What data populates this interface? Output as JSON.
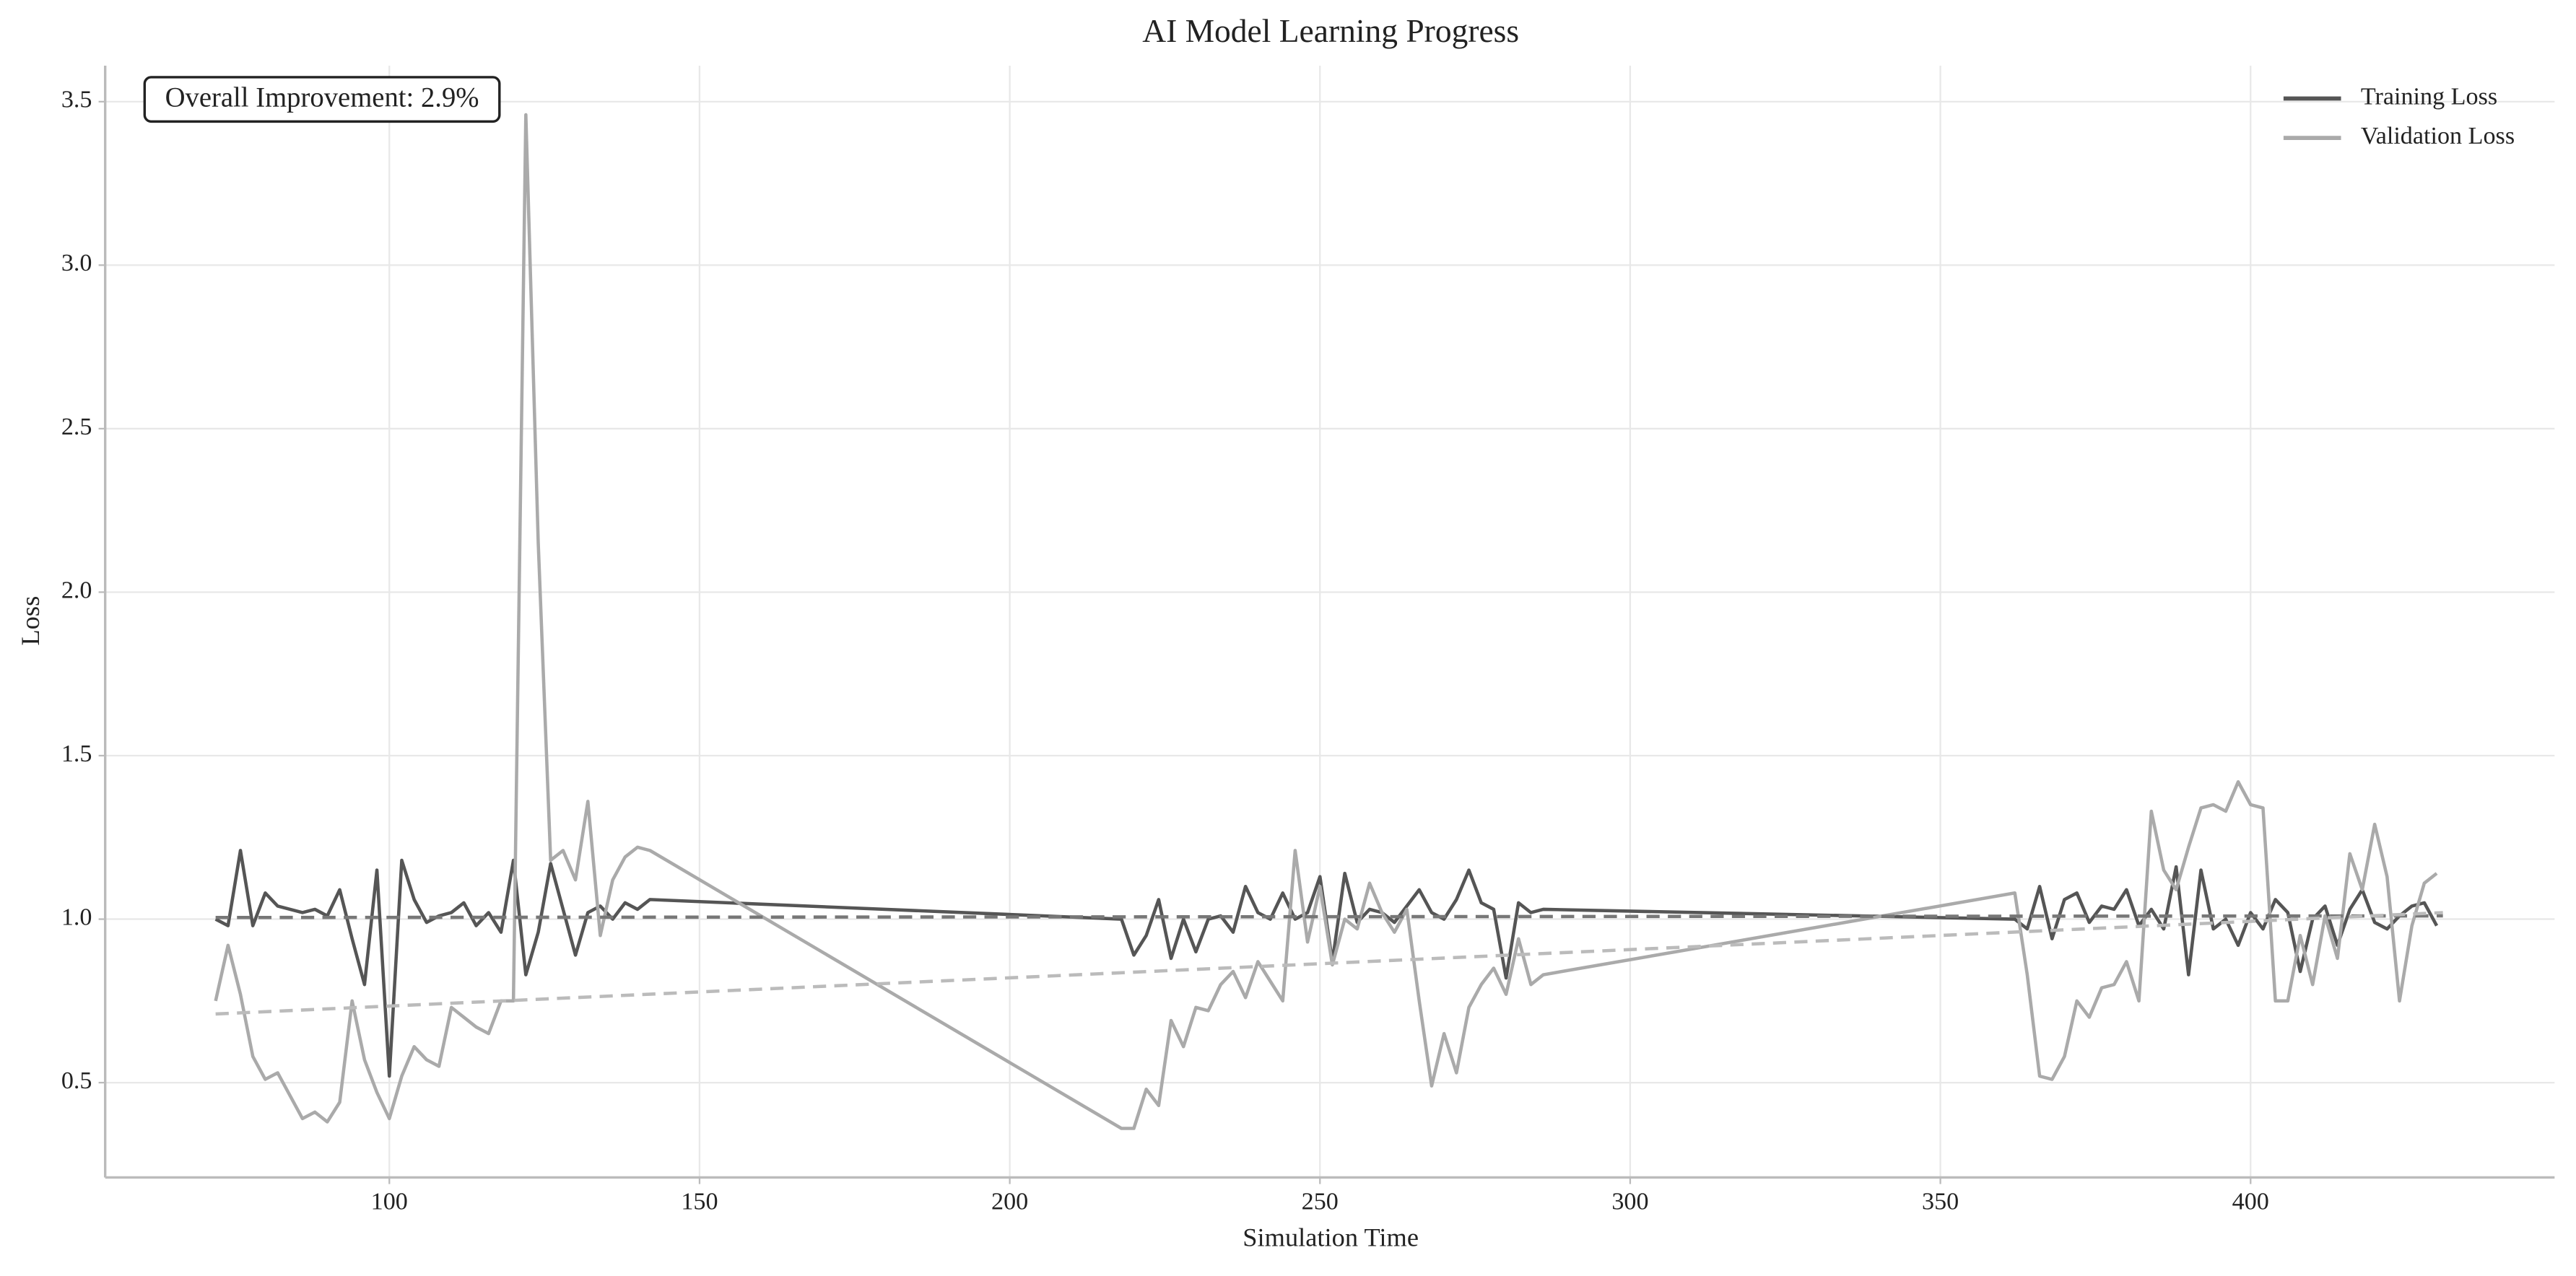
{
  "chart_data": {
    "type": "line",
    "title": "AI Model Learning Progress",
    "xlabel": "Simulation Time",
    "ylabel": "Loss",
    "annotation": "Overall Improvement: 2.9%",
    "x": [
      72,
      74,
      76,
      78,
      80,
      82,
      84,
      86,
      88,
      90,
      92,
      94,
      96,
      98,
      100,
      102,
      104,
      106,
      108,
      110,
      112,
      114,
      116,
      118,
      120,
      122,
      124,
      126,
      128,
      130,
      132,
      134,
      136,
      138,
      140,
      142,
      218,
      220,
      222,
      224,
      226,
      228,
      230,
      232,
      234,
      236,
      238,
      240,
      242,
      244,
      246,
      248,
      250,
      252,
      254,
      256,
      258,
      260,
      262,
      264,
      266,
      268,
      270,
      272,
      274,
      276,
      278,
      280,
      282,
      284,
      286,
      362,
      364,
      366,
      368,
      370,
      372,
      374,
      376,
      378,
      380,
      382,
      384,
      386,
      388,
      390,
      392,
      394,
      396,
      398,
      400,
      402,
      404,
      406,
      408,
      410,
      412,
      414,
      416,
      418,
      420,
      422,
      424,
      426,
      428,
      430
    ],
    "series": [
      {
        "name": "Training Loss",
        "color": "#555555",
        "values": [
          1.0,
          0.98,
          1.21,
          0.98,
          1.08,
          1.04,
          1.03,
          1.02,
          1.03,
          1.01,
          1.09,
          0.94,
          0.8,
          1.15,
          0.52,
          1.18,
          1.06,
          0.99,
          1.01,
          1.02,
          1.05,
          0.98,
          1.02,
          0.96,
          1.18,
          0.83,
          0.96,
          1.17,
          1.03,
          0.89,
          1.02,
          1.04,
          1.0,
          1.05,
          1.03,
          1.06,
          1.0,
          0.89,
          0.95,
          1.06,
          0.88,
          1.0,
          0.9,
          1.0,
          1.01,
          0.96,
          1.1,
          1.02,
          1.0,
          1.08,
          1.0,
          1.02,
          1.13,
          0.87,
          1.14,
          0.99,
          1.03,
          1.02,
          0.99,
          1.04,
          1.09,
          1.02,
          1.0,
          1.06,
          1.15,
          1.05,
          1.03,
          0.82,
          1.05,
          1.02,
          1.03,
          1.0,
          0.97,
          1.1,
          0.94,
          1.06,
          1.08,
          0.99,
          1.04,
          1.03,
          1.09,
          0.98,
          1.03,
          0.97,
          1.16,
          0.83,
          1.15,
          0.97,
          1.0,
          0.92,
          1.02,
          0.97,
          1.06,
          1.02,
          0.84,
          1.0,
          1.04,
          0.92,
          1.03,
          1.09,
          0.99,
          0.97,
          1.01,
          1.04,
          1.05,
          0.98
        ]
      },
      {
        "name": "Validation Loss",
        "color": "#aaaaaa",
        "values": [
          0.75,
          0.92,
          0.77,
          0.58,
          0.51,
          0.53,
          0.46,
          0.39,
          0.41,
          0.38,
          0.44,
          0.75,
          0.57,
          0.47,
          0.39,
          0.52,
          0.61,
          0.57,
          0.55,
          0.73,
          0.7,
          0.67,
          0.65,
          0.75,
          0.75,
          3.46,
          2.15,
          1.18,
          1.21,
          1.12,
          1.36,
          0.95,
          1.12,
          1.19,
          1.22,
          1.21,
          0.36,
          0.36,
          0.48,
          0.43,
          0.69,
          0.61,
          0.73,
          0.72,
          0.8,
          0.84,
          0.76,
          0.87,
          0.81,
          0.75,
          1.21,
          0.93,
          1.1,
          0.86,
          1.0,
          0.97,
          1.11,
          1.02,
          0.96,
          1.03,
          0.75,
          0.49,
          0.65,
          0.53,
          0.73,
          0.8,
          0.85,
          0.77,
          0.94,
          0.8,
          0.83,
          1.08,
          0.83,
          0.52,
          0.51,
          0.58,
          0.75,
          0.7,
          0.79,
          0.8,
          0.87,
          0.75,
          1.33,
          1.15,
          1.09,
          1.22,
          1.34,
          1.35,
          1.33,
          1.42,
          1.35,
          1.34,
          0.75,
          0.75,
          0.95,
          0.8,
          1.01,
          0.88,
          1.2,
          1.09,
          1.29,
          1.13,
          0.75,
          0.98,
          1.11,
          1.14
        ]
      }
    ],
    "trends": [
      {
        "color": "#777777",
        "x": [
          72,
          431
        ],
        "values": [
          1.005,
          1.01
        ]
      },
      {
        "color": "#bbbbbb",
        "x": [
          72,
          431
        ],
        "values": [
          0.71,
          1.02
        ]
      }
    ],
    "xlim": [
      54.2,
      449
    ],
    "ylim": [
      0.21,
      3.61
    ],
    "xticks": [
      100,
      150,
      200,
      250,
      300,
      350,
      400
    ],
    "yticks": [
      {
        "value": 0.5,
        "label": "0.5"
      },
      {
        "value": 1,
        "label": "1.0"
      },
      {
        "value": 1.5,
        "label": "1.5"
      },
      {
        "value": 2,
        "label": "2.0"
      },
      {
        "value": 2.5,
        "label": "2.5"
      },
      {
        "value": 3,
        "label": "3.0"
      },
      {
        "value": 3.5,
        "label": "3.5"
      }
    ],
    "grid": true,
    "legend": "upper right"
  }
}
